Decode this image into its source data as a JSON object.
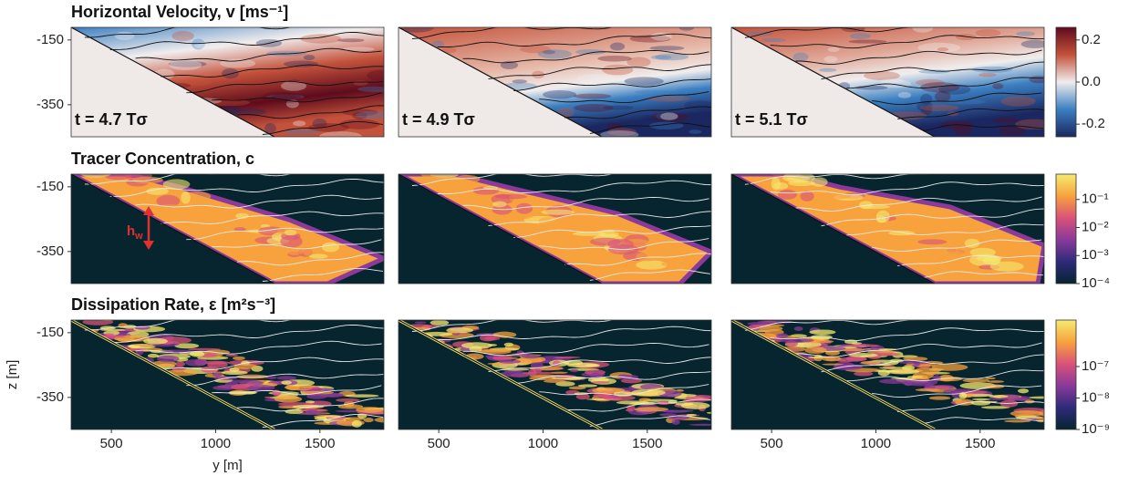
{
  "chart_data": [
    {
      "type": "heatmap",
      "title": "Horizontal Velocity, v [ms⁻¹]",
      "panels": [
        "t = 4.7 Tσ",
        "t = 4.9 Tσ",
        "t = 5.1 Tσ"
      ],
      "xlim": [
        307,
        1807
      ],
      "ylim": [
        -449,
        -111
      ],
      "yticks": [
        -150,
        -350
      ],
      "colorbar_lim": [
        -0.26,
        0.26
      ],
      "colorbar_log": false,
      "colorbar_ticks": [
        0.2,
        {
          "value": 0,
          "label": "0.0"
        },
        -0.2
      ],
      "colormap": [
        "#1b2760",
        "#3b7fc1",
        "#f0eded",
        "#c4523b",
        "#5e0b1c"
      ]
    },
    {
      "type": "heatmap",
      "title": "Tracer Concentration, c",
      "annotation": [
        "h",
        "w"
      ],
      "xlim": [
        307,
        1807
      ],
      "ylim": [
        -449,
        -111
      ],
      "yticks": [
        -150,
        -350
      ],
      "colorbar_lim": [
        0.0001,
        0.8
      ],
      "colorbar_log": true,
      "colorbar_ticks": [
        {
          "value": 0.1,
          "label": "10⁻¹"
        },
        {
          "value": 0.01,
          "label": "10⁻²"
        },
        {
          "value": 0.001,
          "label": "10⁻³"
        },
        {
          "value": 0.0001,
          "label": "10⁻⁴"
        }
      ],
      "colormap": [
        "#06252f",
        "#2d2a7a",
        "#8a3a9a",
        "#d9527a",
        "#f7a23c",
        "#f5ea70"
      ]
    },
    {
      "type": "heatmap",
      "title": "Dissipation Rate, ε [m²s⁻³]",
      "xlim": [
        307,
        1807
      ],
      "ylim": [
        -449,
        -111
      ],
      "yticks": [
        -150,
        -350
      ],
      "xticks": [
        500,
        1000,
        1500
      ],
      "xlabel": "y [m]",
      "ylabel": "z [m]",
      "colorbar_lim": [
        1e-09,
        3e-06
      ],
      "colorbar_log": true,
      "colorbar_ticks": [
        {
          "value": 1e-07,
          "label": "10⁻⁷"
        },
        {
          "value": 1e-08,
          "label": "10⁻⁸"
        },
        {
          "value": 1e-09,
          "label": "10⁻⁹"
        }
      ],
      "colormap": [
        "#06252f",
        "#2d2a7a",
        "#8a3a9a",
        "#d9527a",
        "#f7a23c",
        "#f5ea70"
      ]
    }
  ]
}
